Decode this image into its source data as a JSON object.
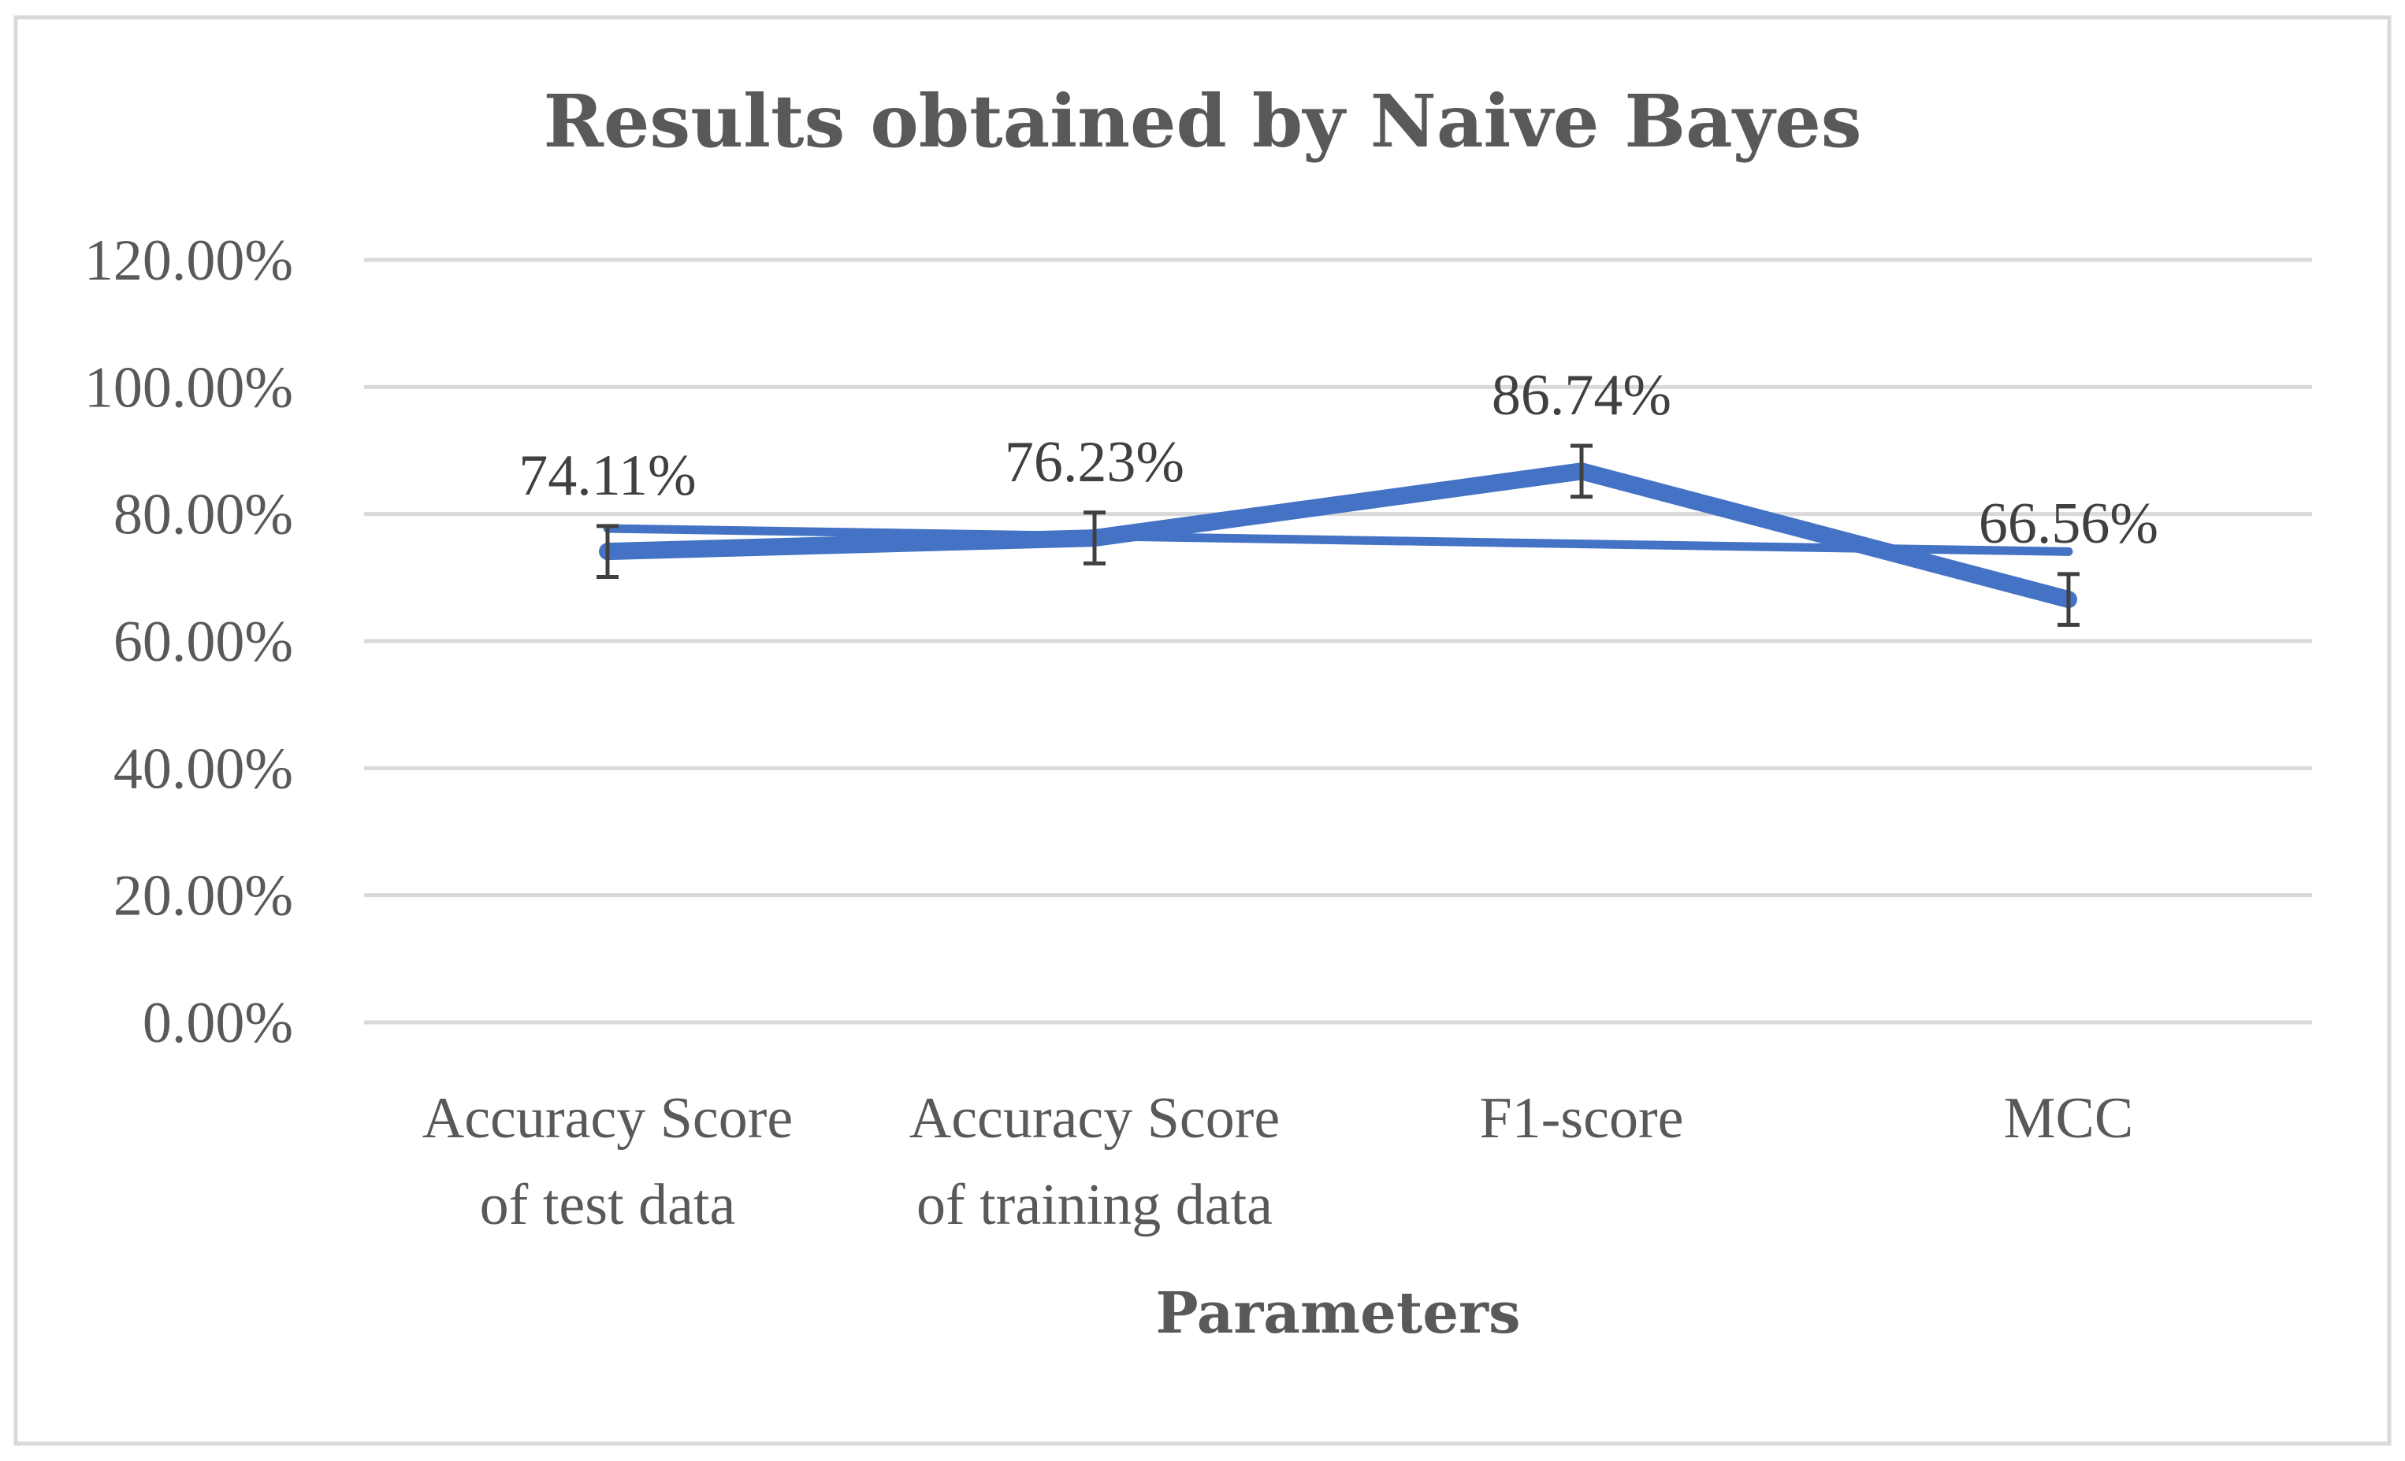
{
  "chart_data": {
    "type": "line",
    "title": "Results obtained by Naive Bayes",
    "xlabel": "Parameters",
    "ylabel": "",
    "categories": [
      [
        "Accuracy Score",
        "of test data"
      ],
      [
        "Accuracy Score",
        "of training data"
      ],
      [
        "F1-score"
      ],
      [
        "MCC"
      ]
    ],
    "series": [
      {
        "values": [
          74.11,
          76.23,
          86.74,
          66.56
        ],
        "data_labels": [
          "74.11%",
          "76.23%",
          "86.74%",
          "66.56%"
        ],
        "error": [
          4.0,
          4.0,
          4.0,
          4.0
        ],
        "color": "#4472C4"
      }
    ],
    "trendline": {
      "type": "linear",
      "color": "#4472C4"
    },
    "ylim": [
      0,
      120
    ],
    "yticks": [
      0,
      20,
      40,
      60,
      80,
      100,
      120
    ],
    "ytick_labels": [
      "0.00%",
      "20.00%",
      "40.00%",
      "60.00%",
      "80.00%",
      "100.00%",
      "120.00%"
    ],
    "grid": true,
    "legend": "none",
    "colors": {
      "gridline": "#D9D9D9",
      "border": "#D9D9D9",
      "errorbar": "#404040",
      "text": "#595959"
    }
  }
}
